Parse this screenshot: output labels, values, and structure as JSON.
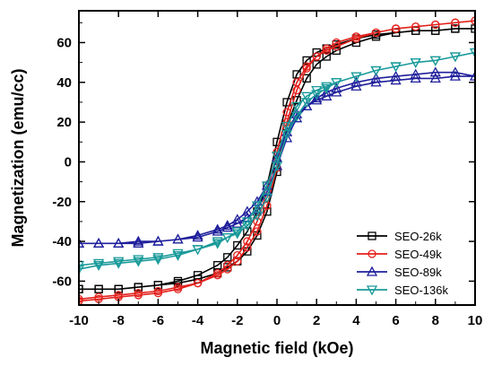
{
  "chart_data": {
    "type": "line",
    "title": "",
    "xlabel": "Magnetic field (kOe)",
    "ylabel": "Magnetization (emu/cc)",
    "xlim": [
      -10,
      10
    ],
    "ylim": [
      -72,
      76
    ],
    "xticks": [
      -10,
      -8,
      -6,
      -4,
      -2,
      0,
      2,
      4,
      6,
      8,
      10
    ],
    "yticks": [
      -60,
      -40,
      -20,
      0,
      20,
      40,
      60
    ],
    "grid": false,
    "legend_position": "bottom-right",
    "series": [
      {
        "name": "SEO-26k",
        "color": "#000000",
        "marker": "square",
        "x": [
          -10,
          -9,
          -8,
          -7,
          -6,
          -5,
          -4,
          -3,
          -2.5,
          -2,
          -1.5,
          -1,
          -0.5,
          0,
          0.5,
          1,
          1.5,
          2,
          2.5,
          3,
          4,
          5,
          6,
          7,
          8,
          9,
          10,
          9,
          8,
          7,
          6,
          5,
          4,
          3,
          2.5,
          2,
          1.5,
          1,
          0.5,
          0,
          -0.5,
          -1,
          -1.5,
          -2,
          -2.5,
          -3,
          -4,
          -5,
          -6,
          -7,
          -8,
          -9,
          -10
        ],
        "y": [
          -64,
          -64,
          -64,
          -63,
          -62,
          -60,
          -57,
          -52,
          -48,
          -42,
          -35,
          -25,
          -12,
          10,
          30,
          44,
          51,
          55,
          57,
          59,
          62,
          64,
          65,
          66,
          66,
          67,
          67,
          67,
          66,
          66,
          65,
          63,
          60,
          56,
          53,
          49,
          42,
          31,
          18,
          -5,
          -25,
          -37,
          -45,
          -50,
          -53,
          -56,
          -59,
          -61,
          -62,
          -63,
          -64,
          -64,
          -64
        ]
      },
      {
        "name": "SEO-49k",
        "color": "#e4211c",
        "marker": "circle",
        "x": [
          -10,
          -9,
          -8,
          -7,
          -6,
          -5,
          -4,
          -3,
          -2.5,
          -2,
          -1.5,
          -1,
          -0.5,
          0,
          0.5,
          1,
          1.5,
          2,
          2.5,
          3,
          4,
          5,
          6,
          7,
          8,
          9,
          10,
          9,
          8,
          7,
          6,
          5,
          4,
          3,
          2.5,
          2,
          1.5,
          1,
          0.5,
          0,
          -0.5,
          -1,
          -1.5,
          -2,
          -2.5,
          -3,
          -4,
          -5,
          -6,
          -7,
          -8,
          -9,
          -10
        ],
        "y": [
          -70,
          -69,
          -68,
          -67,
          -66,
          -64,
          -61,
          -56,
          -52,
          -47,
          -40,
          -30,
          -15,
          5,
          25,
          40,
          48,
          53,
          56,
          58,
          62,
          65,
          67,
          68,
          69,
          70,
          71,
          70,
          69,
          68,
          67,
          65,
          63,
          60,
          57,
          53,
          47,
          36,
          20,
          -3,
          -22,
          -35,
          -43,
          -50,
          -54,
          -57,
          -61,
          -63,
          -65,
          -66,
          -67,
          -68,
          -69
        ]
      },
      {
        "name": "SEO-89k",
        "color": "#1f1f9c",
        "marker": "triangle-up",
        "x": [
          -10,
          -9,
          -8,
          -7,
          -6,
          -5,
          -4,
          -3,
          -2.5,
          -2,
          -1.5,
          -1,
          -0.5,
          0,
          0.5,
          1,
          1.5,
          2,
          2.5,
          3,
          4,
          5,
          6,
          7,
          8,
          9,
          10,
          9,
          8,
          7,
          6,
          5,
          4,
          3,
          2.5,
          2,
          1.5,
          1,
          0.5,
          0,
          -0.5,
          -1,
          -1.5,
          -2,
          -2.5,
          -3,
          -4,
          -5,
          -6,
          -7,
          -8,
          -9,
          -10
        ],
        "y": [
          -41,
          -41,
          -41,
          -40,
          -40,
          -39,
          -37,
          -34,
          -32,
          -29,
          -25,
          -20,
          -12,
          2,
          15,
          24,
          28,
          31,
          33,
          35,
          38,
          40,
          41,
          42,
          42,
          43,
          43,
          45,
          45,
          44,
          43,
          42,
          40,
          37,
          35,
          32,
          28,
          22,
          12,
          -2,
          -15,
          -24,
          -28,
          -31,
          -33,
          -35,
          -38,
          -39,
          -40,
          -41,
          -41,
          -41,
          -41
        ]
      },
      {
        "name": "SEO-136k",
        "color": "#1a9a9a",
        "marker": "triangle-down",
        "x": [
          -10,
          -9,
          -8,
          -7,
          -6,
          -5,
          -4,
          -3,
          -2.5,
          -2,
          -1.5,
          -1,
          -0.5,
          0,
          0.5,
          1,
          1.5,
          2,
          2.5,
          3,
          4,
          5,
          6,
          7,
          8,
          9,
          10,
          9,
          8,
          7,
          6,
          5,
          4,
          3,
          2.5,
          2,
          1.5,
          1,
          0.5,
          0,
          -0.5,
          -1,
          -1.5,
          -2,
          -2.5,
          -3,
          -4,
          -5,
          -6,
          -7,
          -8,
          -9,
          -10
        ],
        "y": [
          -54,
          -52,
          -51,
          -50,
          -49,
          -47,
          -44,
          -41,
          -38,
          -35,
          -30,
          -22,
          -12,
          3,
          18,
          28,
          33,
          36,
          38,
          40,
          43,
          46,
          48,
          50,
          51,
          53,
          55,
          53,
          51,
          50,
          48,
          46,
          43,
          40,
          37,
          34,
          30,
          23,
          14,
          -2,
          -18,
          -27,
          -32,
          -36,
          -38,
          -40,
          -44,
          -46,
          -48,
          -49,
          -50,
          -51,
          -52
        ]
      }
    ]
  }
}
